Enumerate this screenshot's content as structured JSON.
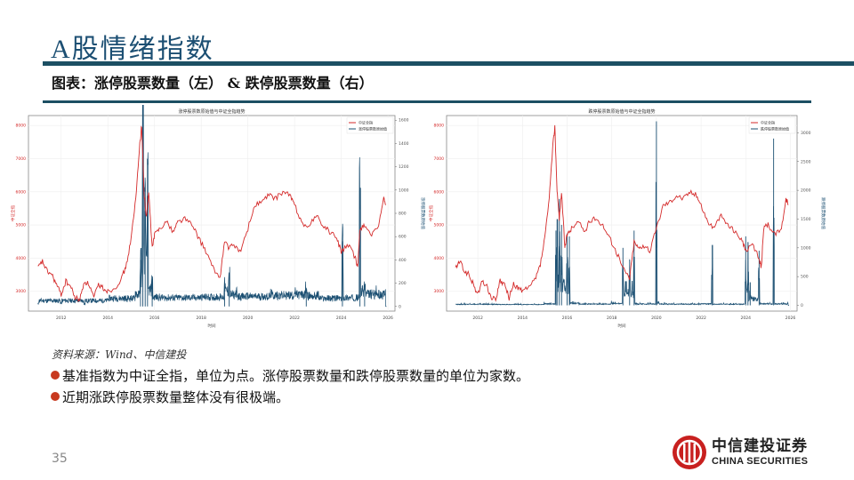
{
  "header": {
    "title_prefix": "A",
    "title_rest": "股情绪指数",
    "subtitle": "图表：涨停股票数量（左） & 跌停股票数量（右）",
    "rule_color": "#1c4f63"
  },
  "colors": {
    "index_line": "#d42a2a",
    "count_line": "#1b4f72",
    "bullet": "#c8391f"
  },
  "chart_data": [
    {
      "type": "line",
      "title": "涨停股票数原始值与中证全指趋势",
      "xlabel": "时间",
      "ylabel_left": "中证全指",
      "ylabel_right": "涨停股票数原始值",
      "legend": [
        "中证全指",
        "涨停股票数原始值"
      ],
      "legend_position": "upper right",
      "x_ticks": [
        "2012",
        "2014",
        "2016",
        "2018",
        "2020",
        "2022",
        "2024",
        "2026"
      ],
      "y_left_ticks": [
        3000,
        4000,
        5000,
        6000,
        7000,
        8000
      ],
      "y_left_range": [
        2400,
        8300
      ],
      "y_right_ticks": [
        0,
        200,
        400,
        600,
        800,
        1000,
        1200,
        1400,
        1600
      ],
      "y_right_range": [
        -40,
        1640
      ],
      "grid": true,
      "series": [
        {
          "name": "中证全指",
          "axis": "left",
          "x": [
            2011.0,
            2011.2,
            2011.4,
            2011.6,
            2011.8,
            2012.0,
            2012.2,
            2012.4,
            2012.6,
            2012.8,
            2013.0,
            2013.2,
            2013.4,
            2013.6,
            2013.8,
            2014.0,
            2014.3,
            2014.6,
            2014.8,
            2015.0,
            2015.2,
            2015.35,
            2015.45,
            2015.55,
            2015.65,
            2015.75,
            2015.9,
            2016.0,
            2016.2,
            2016.5,
            2016.8,
            2017.0,
            2017.3,
            2017.6,
            2017.9,
            2018.2,
            2018.5,
            2018.8,
            2019.0,
            2019.2,
            2019.4,
            2019.7,
            2020.0,
            2020.3,
            2020.6,
            2020.9,
            2021.2,
            2021.5,
            2021.8,
            2022.0,
            2022.3,
            2022.6,
            2022.9,
            2023.2,
            2023.5,
            2023.8,
            2024.0,
            2024.3,
            2024.6,
            2024.7,
            2024.8,
            2025.0,
            2025.3,
            2025.6,
            2025.8,
            2025.9
          ],
          "values": [
            3700,
            3900,
            3600,
            3500,
            3200,
            2900,
            3300,
            3150,
            2800,
            2750,
            3300,
            3200,
            2800,
            3200,
            3100,
            3000,
            3100,
            3400,
            3800,
            4600,
            5800,
            7300,
            8000,
            6000,
            5200,
            6000,
            4300,
            4700,
            4900,
            5100,
            4800,
            5100,
            5200,
            5000,
            4600,
            4200,
            3700,
            3400,
            4500,
            4300,
            4400,
            4200,
            4900,
            5600,
            5700,
            5900,
            5800,
            6000,
            5900,
            5600,
            5100,
            4900,
            5300,
            5000,
            4800,
            4600,
            4200,
            4400,
            4000,
            3700,
            4900,
            5000,
            4700,
            4900,
            5800,
            5600
          ]
        },
        {
          "name": "涨停股票数原始值",
          "axis": "right",
          "x": [
            2011.0,
            2012.0,
            2013.0,
            2014.0,
            2014.8,
            2015.2,
            2015.4,
            2015.5,
            2015.6,
            2015.7,
            2015.9,
            2016.2,
            2017.0,
            2018.0,
            2019.0,
            2019.2,
            2019.5,
            2020.0,
            2021.0,
            2022.0,
            2022.5,
            2023.0,
            2024.0,
            2024.05,
            2024.4,
            2024.8,
            2025.0,
            2025.5,
            2025.9
          ],
          "values": [
            20,
            30,
            20,
            60,
            60,
            120,
            400,
            1550,
            820,
            950,
            200,
            80,
            70,
            80,
            180,
            270,
            120,
            90,
            110,
            120,
            160,
            100,
            60,
            560,
            70,
            1020,
            180,
            130,
            120
          ]
        }
      ]
    },
    {
      "type": "line",
      "title": "跌停股票数原始值与中证全指趋势",
      "xlabel": "时间",
      "ylabel_left": "中证全指",
      "ylabel_right": "跌停股票数原始值",
      "legend": [
        "中证全指",
        "跌停股票数原始值"
      ],
      "legend_position": "upper right",
      "x_ticks": [
        "2012",
        "2014",
        "2016",
        "2018",
        "2020",
        "2022",
        "2024",
        "2026"
      ],
      "y_left_ticks": [
        3000,
        4000,
        5000,
        6000,
        7000,
        8000
      ],
      "y_left_range": [
        2400,
        8300
      ],
      "y_right_ticks": [
        0,
        500,
        1000,
        1500,
        2000,
        2500,
        3000
      ],
      "y_right_range": [
        -100,
        3300
      ],
      "grid": true,
      "series": [
        {
          "name": "中证全指",
          "axis": "left",
          "x": [
            2011.0,
            2011.2,
            2011.4,
            2011.6,
            2011.8,
            2012.0,
            2012.2,
            2012.4,
            2012.6,
            2012.8,
            2013.0,
            2013.2,
            2013.4,
            2013.6,
            2013.8,
            2014.0,
            2014.3,
            2014.6,
            2014.8,
            2015.0,
            2015.2,
            2015.35,
            2015.45,
            2015.55,
            2015.65,
            2015.75,
            2015.9,
            2016.0,
            2016.2,
            2016.5,
            2016.8,
            2017.0,
            2017.3,
            2017.6,
            2017.9,
            2018.2,
            2018.5,
            2018.8,
            2019.0,
            2019.2,
            2019.4,
            2019.7,
            2020.0,
            2020.3,
            2020.6,
            2020.9,
            2021.2,
            2021.5,
            2021.8,
            2022.0,
            2022.3,
            2022.6,
            2022.9,
            2023.2,
            2023.5,
            2023.8,
            2024.0,
            2024.3,
            2024.6,
            2024.7,
            2024.8,
            2025.0,
            2025.3,
            2025.6,
            2025.8,
            2025.9
          ],
          "values": [
            3700,
            3900,
            3600,
            3500,
            3200,
            2900,
            3300,
            3150,
            2800,
            2750,
            3300,
            3200,
            2800,
            3200,
            3100,
            3000,
            3100,
            3400,
            3800,
            4600,
            5800,
            7300,
            8000,
            6000,
            5200,
            6000,
            4300,
            4700,
            4900,
            5100,
            4800,
            5100,
            5200,
            5000,
            4600,
            4200,
            3700,
            3400,
            4500,
            4300,
            4400,
            4200,
            4900,
            5600,
            5700,
            5900,
            5800,
            6000,
            5900,
            5600,
            5100,
            4900,
            5300,
            5000,
            4800,
            4600,
            4200,
            4400,
            4000,
            3700,
            4900,
            5000,
            4700,
            4900,
            5800,
            5600
          ]
        },
        {
          "name": "跌停股票数原始值",
          "axis": "right",
          "x": [
            2011.0,
            2012.0,
            2013.0,
            2014.0,
            2015.0,
            2015.5,
            2015.55,
            2015.65,
            2015.75,
            2016.0,
            2016.1,
            2016.5,
            2017.0,
            2018.0,
            2018.5,
            2018.8,
            2019.0,
            2019.4,
            2020.0,
            2020.1,
            2021.0,
            2022.0,
            2022.5,
            2023.0,
            2024.0,
            2024.1,
            2024.2,
            2024.6,
            2025.0,
            2025.25,
            2025.5,
            2025.9
          ],
          "values": [
            30,
            40,
            30,
            20,
            60,
            1300,
            1500,
            1850,
            1400,
            1250,
            1200,
            100,
            50,
            80,
            1000,
            800,
            1300,
            50,
            3200,
            100,
            40,
            60,
            1050,
            40,
            1200,
            1100,
            400,
            950,
            60,
            2900,
            60,
            80
          ]
        }
      ]
    }
  ],
  "charts_render": {
    "left": {
      "title": "涨停股票数原始值与中证全指趋势",
      "legend": [
        "中证全指",
        "涨停股票数原始值"
      ],
      "xlabel": "时间",
      "ylabel_left": "中证全指",
      "ylabel_right": "涨停股票数原始值"
    },
    "right": {
      "title": "跌停股票数原始值与中证全指趋势",
      "legend": [
        "中证全指",
        "跌停股票数原始值"
      ],
      "xlabel": "时间",
      "ylabel_left": "中证全指",
      "ylabel_right": "跌停股票数原始值"
    }
  },
  "footer": {
    "source": "资料来源：Wind、中信建投",
    "bullets": [
      "基准指数为中证全指，单位为点。涨停股票数量和跌停股票数量的单位为家数。",
      "近期涨跌停股票数量整体没有很极端。"
    ],
    "page_number": "35",
    "logo_cn": "中信建投证券",
    "logo_en": "CHINA SECURITIES"
  }
}
